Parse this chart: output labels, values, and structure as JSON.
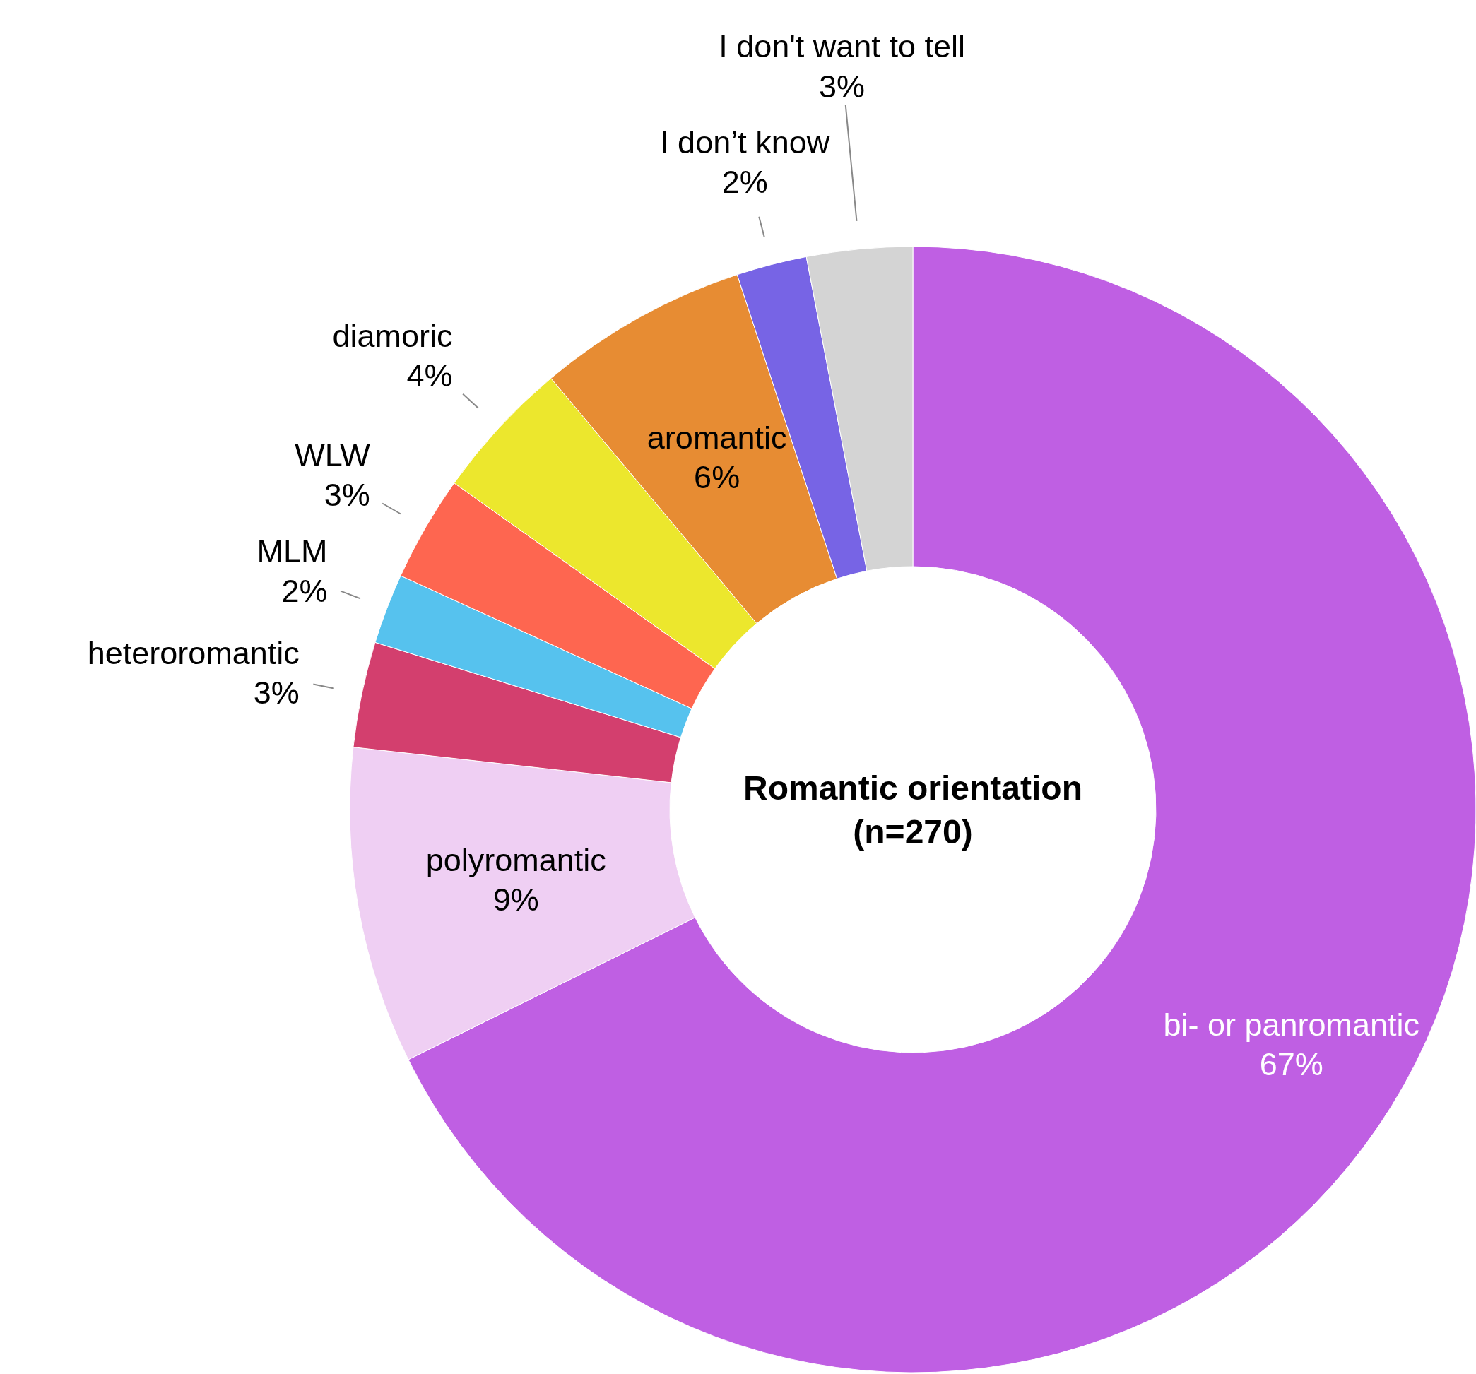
{
  "chart_data": {
    "type": "donut",
    "title": "Romantic orientation",
    "subtitle": "(n=270)",
    "categories": [
      "bi- or panromantic",
      "polyromantic",
      "heteroromantic",
      "MLM",
      "WLW",
      "diamoric",
      "aromantic",
      "I don’t know",
      "I don't want to tell"
    ],
    "values": [
      67,
      9,
      3,
      2,
      3,
      4,
      6,
      2,
      3
    ],
    "value_labels": [
      "67%",
      "9%",
      "3%",
      "2%",
      "3%",
      "4%",
      "6%",
      "2%",
      "3%"
    ],
    "colors": [
      "#bf5fe3",
      "#efcff3",
      "#d33f6e",
      "#56c2ee",
      "#fe6650",
      "#ece72d",
      "#e78c33",
      "#7764e5",
      "#d4d4d4"
    ]
  }
}
